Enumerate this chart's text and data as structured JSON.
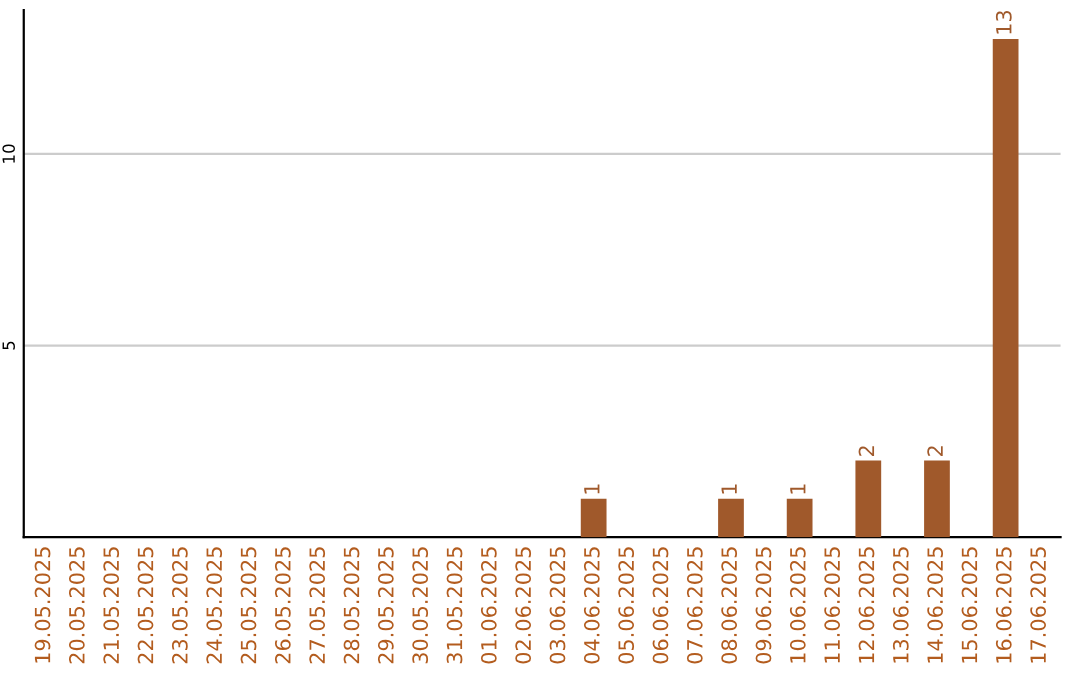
{
  "chart_data": {
    "type": "bar",
    "categories": [
      "19.05.2025",
      "20.05.2025",
      "21.05.2025",
      "22.05.2025",
      "23.05.2025",
      "24.05.2025",
      "25.05.2025",
      "26.05.2025",
      "27.05.2025",
      "28.05.2025",
      "29.05.2025",
      "30.05.2025",
      "31.05.2025",
      "01.06.2025",
      "02.06.2025",
      "03.06.2025",
      "04.06.2025",
      "05.06.2025",
      "06.06.2025",
      "07.06.2025",
      "08.06.2025",
      "09.06.2025",
      "10.06.2025",
      "11.06.2025",
      "12.06.2025",
      "13.06.2025",
      "14.06.2025",
      "15.06.2025",
      "16.06.2025",
      "17.06.2025"
    ],
    "values": [
      0,
      0,
      0,
      0,
      0,
      0,
      0,
      0,
      0,
      0,
      0,
      0,
      0,
      0,
      0,
      0,
      1,
      0,
      0,
      0,
      1,
      0,
      1,
      0,
      2,
      0,
      2,
      0,
      13,
      0
    ],
    "value_labels": [
      null,
      null,
      null,
      null,
      null,
      null,
      null,
      null,
      null,
      null,
      null,
      null,
      null,
      null,
      null,
      null,
      "1",
      null,
      null,
      null,
      "1",
      null,
      "1",
      null,
      "2",
      null,
      "2",
      null,
      "13",
      null
    ],
    "color": "#a0592b",
    "ylim": [
      0,
      13.75
    ],
    "yticks": [
      5,
      10
    ],
    "grid": "y",
    "legend": false
  }
}
